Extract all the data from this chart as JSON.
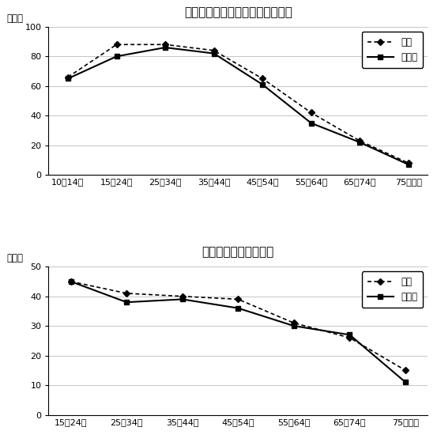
{
  "chart1": {
    "title": "図７－１　インターネットの利用",
    "ylabel": "（％）",
    "xlabels": [
      "10－14歳",
      "15－24歳",
      "25－34歳",
      "35－44歳",
      "45－54歳",
      "55－64歳",
      "65－74歳",
      "75歳以上"
    ],
    "zenkoku": [
      66,
      88,
      88,
      84,
      65,
      42,
      23,
      8
    ],
    "ibaraki": [
      65,
      80,
      86,
      82,
      61,
      35,
      22,
      7
    ],
    "ylim": [
      0,
      100
    ],
    "yticks": [
      0,
      20,
      40,
      60,
      80,
      100
    ]
  },
  "chart2": {
    "title": "図７－２　学習・研究",
    "ylabel": "（％）",
    "xlabels": [
      "15－24歳",
      "25－34歳",
      "35－44歳",
      "45－54歳",
      "55－64歳",
      "65－74歳",
      "75歳以上"
    ],
    "zenkoku": [
      45,
      41,
      40,
      39,
      31,
      26,
      15
    ],
    "ibaraki": [
      45,
      38,
      39,
      36,
      30,
      27,
      11
    ],
    "ylim": [
      0,
      50
    ],
    "yticks": [
      0,
      10,
      20,
      30,
      40,
      50
    ]
  },
  "legend_zenkoku": "全国",
  "legend_ibaraki": "茨城県",
  "line_color": "#000000",
  "bg_color": "#ffffff",
  "grid_color": "#bbbbbb",
  "title_fontsize": 11,
  "label_fontsize": 8.5,
  "tick_fontsize": 8
}
